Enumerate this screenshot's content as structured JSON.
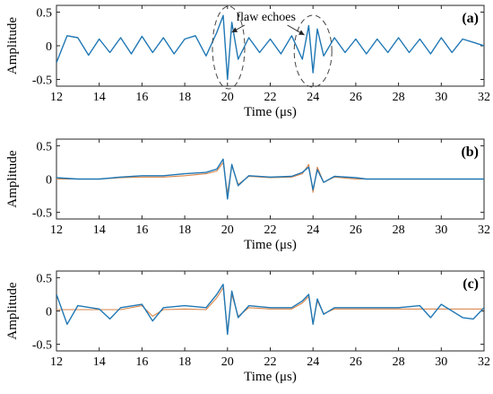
{
  "colors": {
    "signal": "#1f77b4",
    "reference": "#d9864a",
    "axes": "#262626",
    "annotation": "#222222"
  },
  "annotation": {
    "text": "flaw echoes"
  },
  "panels": [
    {
      "id": "a",
      "label": "(a)",
      "ylabel": "Amplitude",
      "xlabel": "Time (μs)",
      "yticks": [
        "-0.5",
        "0",
        "0.5"
      ],
      "xticks": [
        "12",
        "14",
        "16",
        "18",
        "20",
        "22",
        "24",
        "26",
        "28",
        "30",
        "32"
      ]
    },
    {
      "id": "b",
      "label": "(b)",
      "ylabel": "Amplitude",
      "xlabel": "Time (μs)",
      "yticks": [
        "-0.5",
        "0",
        "0.5"
      ],
      "xticks": [
        "12",
        "14",
        "16",
        "18",
        "20",
        "22",
        "24",
        "26",
        "28",
        "30",
        "32"
      ]
    },
    {
      "id": "c",
      "label": "(c)",
      "ylabel": "Amplitude",
      "xlabel": "Time (μs)",
      "yticks": [
        "-0.5",
        "0",
        "0.5"
      ],
      "xticks": [
        "12",
        "14",
        "16",
        "18",
        "20",
        "22",
        "24",
        "26",
        "28",
        "30",
        "32"
      ]
    }
  ],
  "chart_data": [
    {
      "type": "line",
      "title": "(a)",
      "xlabel": "Time (μs)",
      "ylabel": "Amplitude",
      "xlim": [
        12,
        32
      ],
      "ylim": [
        -0.6,
        0.6
      ],
      "series": [
        {
          "x": [
            12,
            12.5,
            13,
            13.5,
            14,
            14.5,
            15,
            15.5,
            16,
            16.5,
            17,
            17.5,
            18,
            18.5,
            19,
            19.5,
            19.8,
            20,
            20.2,
            20.5,
            21,
            21.5,
            22,
            22.5,
            23,
            23.5,
            23.8,
            24,
            24.2,
            24.5,
            25,
            25.5,
            26,
            26.5,
            27,
            27.5,
            28,
            28.5,
            29,
            29.5,
            30,
            30.5,
            31,
            31.5,
            32
          ],
          "y": [
            -0.25,
            0.15,
            0.12,
            -0.14,
            0.1,
            -0.1,
            0.12,
            -0.12,
            0.14,
            -0.1,
            0.12,
            -0.12,
            0.1,
            0.15,
            -0.15,
            0.2,
            0.45,
            -0.5,
            0.35,
            -0.2,
            0.12,
            -0.1,
            0.1,
            -0.12,
            0.15,
            -0.2,
            0.3,
            -0.4,
            0.25,
            -0.15,
            0.12,
            -0.1,
            0.1,
            -0.12,
            0.1,
            -0.1,
            0.12,
            -0.1,
            0.1,
            -0.12,
            0.12,
            -0.1,
            0.1,
            0.05,
            0.0
          ]
        }
      ]
    },
    {
      "type": "line",
      "title": "(b)",
      "xlabel": "Time (μs)",
      "ylabel": "Amplitude",
      "xlim": [
        12,
        32
      ],
      "ylim": [
        -0.6,
        0.6
      ],
      "series": [
        {
          "x": [
            12,
            13,
            14,
            15,
            16,
            17,
            18,
            19,
            19.5,
            19.8,
            20,
            20.2,
            20.5,
            21,
            22,
            23,
            23.5,
            23.8,
            24,
            24.2,
            24.5,
            25,
            26,
            26.5,
            27,
            28,
            29,
            30,
            31,
            32
          ],
          "y": [
            0.02,
            0.0,
            0.0,
            0.03,
            0.05,
            0.05,
            0.08,
            0.1,
            0.15,
            0.3,
            -0.3,
            0.22,
            -0.1,
            0.05,
            0.03,
            0.04,
            0.1,
            0.18,
            -0.16,
            0.14,
            -0.05,
            0.04,
            0.02,
            0.0,
            0.0,
            0.0,
            0.0,
            0.0,
            0.0,
            0.0
          ]
        },
        {
          "x": [
            12,
            13,
            14,
            15,
            16,
            17,
            18,
            19,
            19.5,
            19.8,
            20,
            20.2,
            20.5,
            21,
            22,
            23,
            23.5,
            23.8,
            24,
            24.2,
            24.5,
            25,
            26,
            26.5,
            27,
            28,
            29,
            30,
            31,
            32
          ],
          "y": [
            0.0,
            0.0,
            0.0,
            0.02,
            0.03,
            0.03,
            0.05,
            0.08,
            0.12,
            0.25,
            -0.22,
            0.2,
            -0.08,
            0.04,
            0.02,
            0.03,
            0.08,
            0.22,
            -0.2,
            0.18,
            -0.05,
            0.03,
            0.0,
            0.0,
            0.0,
            0.0,
            0.0,
            0.0,
            0.0,
            0.0
          ]
        }
      ]
    },
    {
      "type": "line",
      "title": "(c)",
      "xlabel": "Time (μs)",
      "ylabel": "Amplitude",
      "xlim": [
        12,
        32
      ],
      "ylim": [
        -0.6,
        0.6
      ],
      "series": [
        {
          "x": [
            12,
            12.5,
            13,
            14,
            14.5,
            15,
            16,
            16.5,
            17,
            18,
            19,
            19.5,
            19.8,
            20,
            20.2,
            20.5,
            21,
            22,
            23,
            23.5,
            23.8,
            24,
            24.2,
            24.5,
            25,
            26,
            27,
            28,
            29,
            29.5,
            30,
            31,
            31.5,
            32
          ],
          "y": [
            0.25,
            -0.2,
            0.08,
            0.03,
            -0.12,
            0.05,
            0.1,
            -0.15,
            0.05,
            0.08,
            0.05,
            0.25,
            0.4,
            -0.35,
            0.3,
            -0.1,
            0.08,
            0.05,
            0.05,
            0.15,
            0.25,
            -0.2,
            0.18,
            -0.05,
            0.05,
            0.05,
            0.05,
            0.05,
            0.08,
            -0.1,
            0.1,
            -0.1,
            -0.12,
            0.05
          ]
        },
        {
          "x": [
            12,
            12.5,
            13,
            14,
            14.5,
            15,
            16,
            16.5,
            17,
            18,
            19,
            19.5,
            19.8,
            20,
            20.2,
            20.5,
            21,
            22,
            23,
            23.5,
            23.8,
            24,
            24.2,
            24.5,
            25,
            26,
            27,
            28,
            29,
            29.5,
            30,
            31,
            31.5,
            32
          ],
          "y": [
            0.02,
            0.02,
            0.02,
            0.02,
            0.02,
            0.02,
            0.08,
            -0.08,
            0.02,
            0.03,
            0.02,
            0.2,
            0.35,
            -0.3,
            0.25,
            -0.08,
            0.05,
            0.03,
            0.03,
            0.12,
            0.22,
            -0.18,
            0.15,
            -0.04,
            0.03,
            0.03,
            0.03,
            0.03,
            0.03,
            0.03,
            0.03,
            0.03,
            0.03,
            0.03
          ]
        }
      ]
    }
  ]
}
